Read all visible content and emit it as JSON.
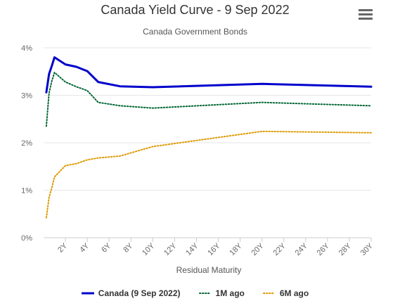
{
  "chart_data": {
    "type": "line",
    "title": "Canada Yield Curve - 9 Sep 2022",
    "subtitle": "Canada Government Bonds",
    "xlabel": "Residual Maturity",
    "ylabel": "",
    "xlim": [
      0,
      30
    ],
    "ylim": [
      0,
      4
    ],
    "x_ticks": [
      "2Y",
      "4Y",
      "6Y",
      "8Y",
      "10Y",
      "12Y",
      "14Y",
      "16Y",
      "18Y",
      "20Y",
      "22Y",
      "24Y",
      "26Y",
      "28Y",
      "30Y"
    ],
    "y_ticks": [
      "0%",
      "1%",
      "2%",
      "3%",
      "4%"
    ],
    "grid": true,
    "legend_position": "bottom",
    "series": [
      {
        "name": "Canada (9 Sep 2022)",
        "color": "#0000cc",
        "style": "solid",
        "x": [
          0.25,
          0.5,
          0.75,
          1,
          2,
          3,
          4,
          5,
          7,
          10,
          20,
          30
        ],
        "y": [
          3.06,
          3.45,
          3.62,
          3.8,
          3.65,
          3.6,
          3.51,
          3.28,
          3.19,
          3.17,
          3.24,
          3.18
        ]
      },
      {
        "name": "1M ago",
        "color": "#006633",
        "style": "dotted",
        "x": [
          0.25,
          0.5,
          0.75,
          1,
          2,
          3,
          4,
          5,
          7,
          10,
          20,
          30
        ],
        "y": [
          2.35,
          3.05,
          3.3,
          3.48,
          3.28,
          3.18,
          3.1,
          2.85,
          2.78,
          2.73,
          2.85,
          2.78
        ]
      },
      {
        "name": "6M ago",
        "color": "#dd9900",
        "style": "dotted",
        "x": [
          0.25,
          0.5,
          0.75,
          1,
          2,
          3,
          4,
          5,
          7,
          10,
          20,
          30
        ],
        "y": [
          0.42,
          0.85,
          1.05,
          1.28,
          1.52,
          1.56,
          1.64,
          1.68,
          1.72,
          1.92,
          2.24,
          2.21
        ]
      }
    ]
  },
  "toolbar": {
    "menu_icon": "hamburger-menu-icon"
  }
}
